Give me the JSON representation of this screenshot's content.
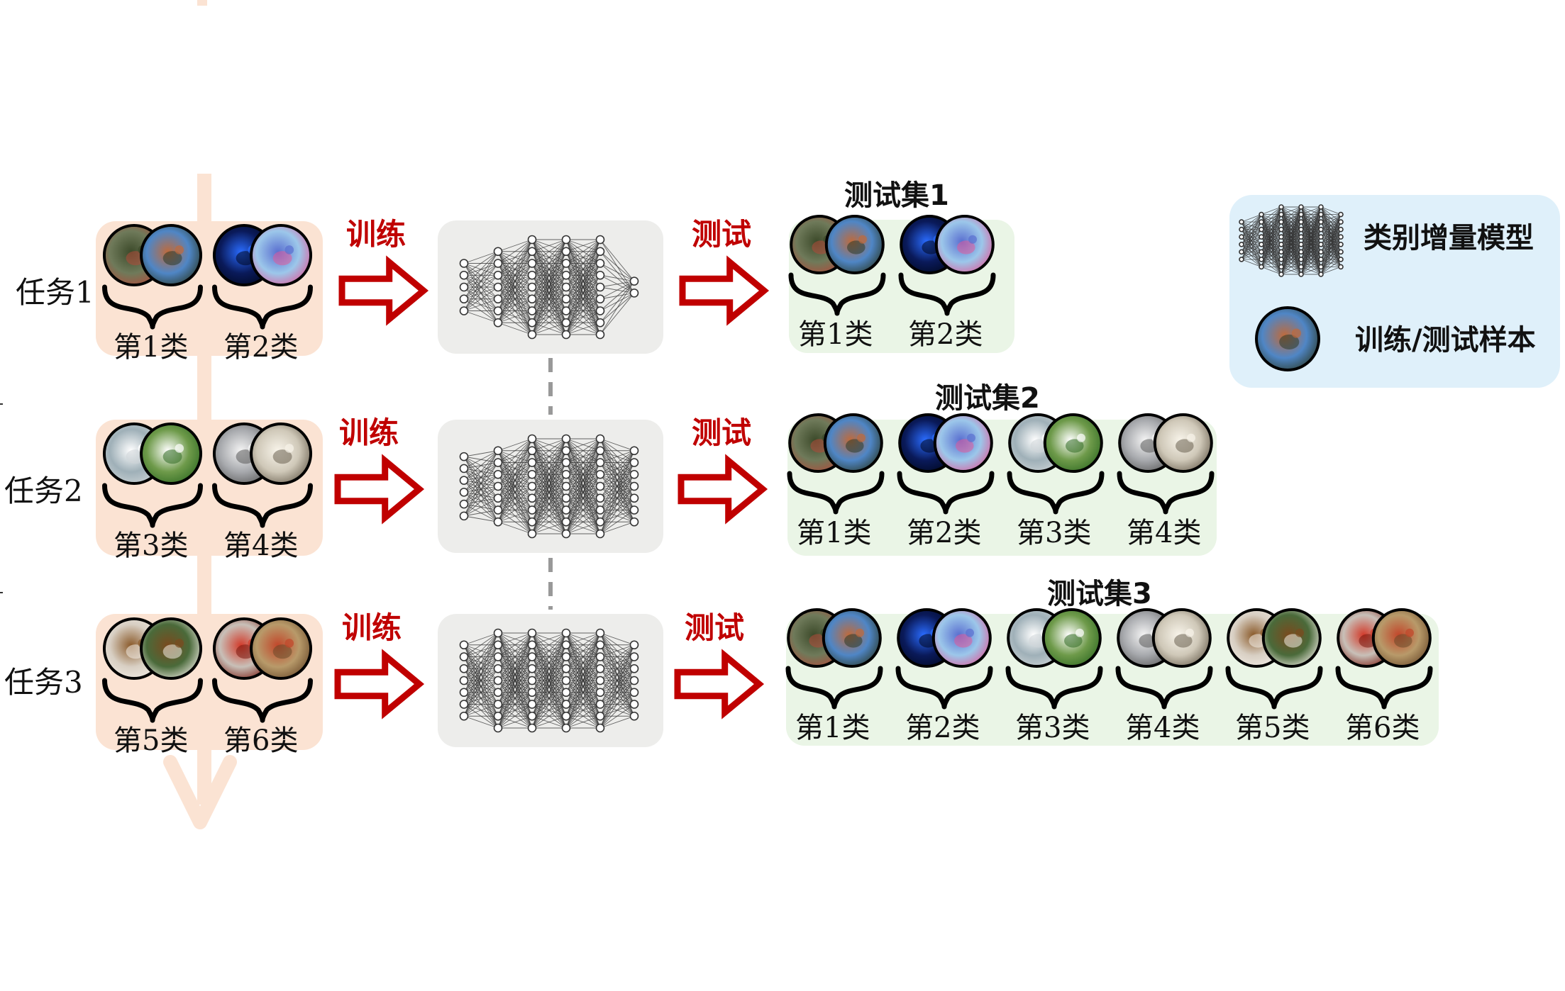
{
  "tasks": [
    {
      "label": "任务1",
      "train_label": "训练",
      "test_label": "测试",
      "train_classes": [
        {
          "label": "第1类",
          "images": [
            "bird-photo-icon",
            "bird-photo-icon"
          ]
        },
        {
          "label": "第2类",
          "images": [
            "jellyfish-photo-icon",
            "jellyfish-photo-icon"
          ]
        }
      ],
      "test_set": {
        "title": "测试集1",
        "classes": [
          {
            "label": "第1类",
            "images": [
              "bird-photo-icon",
              "bird-photo-icon"
            ]
          },
          {
            "label": "第2类",
            "images": [
              "jellyfish-photo-icon",
              "jellyfish-photo-icon"
            ]
          }
        ]
      }
    },
    {
      "label": "任务2",
      "train_label": "训练",
      "test_label": "测试",
      "train_classes": [
        {
          "label": "第3类",
          "images": [
            "goose-photo-icon",
            "goose-photo-icon"
          ]
        },
        {
          "label": "第4类",
          "images": [
            "arctic-fox-photo-icon",
            "arctic-fox-photo-icon"
          ]
        }
      ],
      "test_set": {
        "title": "测试集2",
        "classes": [
          {
            "label": "第1类",
            "images": [
              "bird-photo-icon",
              "bird-photo-icon"
            ]
          },
          {
            "label": "第2类",
            "images": [
              "jellyfish-photo-icon",
              "jellyfish-photo-icon"
            ]
          },
          {
            "label": "第3类",
            "images": [
              "goose-photo-icon",
              "goose-photo-icon"
            ]
          },
          {
            "label": "第4类",
            "images": [
              "arctic-fox-photo-icon",
              "arctic-fox-photo-icon"
            ]
          }
        ]
      }
    },
    {
      "label": "任务3",
      "train_label": "训练",
      "test_label": "测试",
      "train_classes": [
        {
          "label": "第5类",
          "images": [
            "dog-photo-icon",
            "dog-photo-icon"
          ]
        },
        {
          "label": "第6类",
          "images": [
            "crab-photo-icon",
            "crab-photo-icon"
          ]
        }
      ],
      "test_set": {
        "title": "测试集3",
        "classes": [
          {
            "label": "第1类",
            "images": [
              "bird-photo-icon",
              "bird-photo-icon"
            ]
          },
          {
            "label": "第2类",
            "images": [
              "jellyfish-photo-icon",
              "jellyfish-photo-icon"
            ]
          },
          {
            "label": "第3类",
            "images": [
              "goose-photo-icon",
              "goose-photo-icon"
            ]
          },
          {
            "label": "第4类",
            "images": [
              "arctic-fox-photo-icon",
              "arctic-fox-photo-icon"
            ]
          },
          {
            "label": "第5类",
            "images": [
              "dog-photo-icon",
              "dog-photo-icon"
            ]
          },
          {
            "label": "第6类",
            "images": [
              "crab-photo-icon",
              "crab-photo-icon"
            ]
          }
        ]
      }
    }
  ],
  "legend": {
    "model_label": "类别增量模型",
    "sample_label": "训练/测试样本",
    "model_icon": "neural-network-icon",
    "sample_icon": "bird-photo-icon"
  },
  "colors": {
    "task_panel": "#fbe3d3",
    "timeline_arrow": "#fbe3d3",
    "model_panel": "#ededeb",
    "test_panel": "#eaf5e6",
    "legend_panel": "#dff0fa",
    "action_red": "#c00000",
    "connector_gray": "#999999"
  }
}
